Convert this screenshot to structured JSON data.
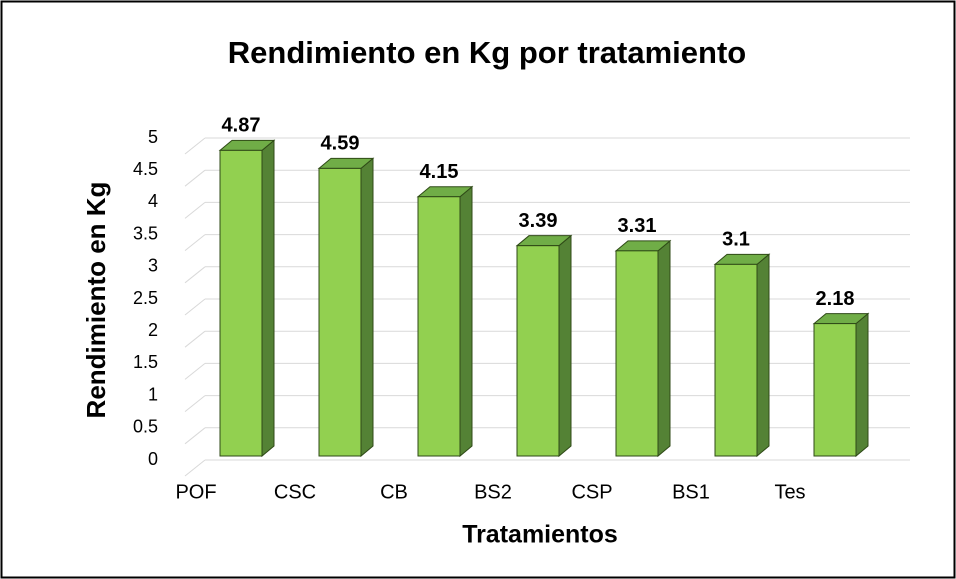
{
  "chart_data": {
    "type": "bar",
    "title": "Rendimiento en Kg por tratamiento",
    "x_label": "Tratamientos",
    "y_label": "Rendimiento en Kg",
    "categories": [
      "POF",
      "CSC",
      "CB",
      "BS2",
      "CSP",
      "BS1",
      "Tes"
    ],
    "values": [
      4.87,
      4.59,
      4.15,
      3.39,
      3.31,
      3.1,
      2.18
    ],
    "color": "#92d050",
    "ylim": [
      0,
      5
    ],
    "yticks": [
      0,
      0.5,
      1,
      1.5,
      2,
      2.5,
      3,
      3.5,
      4,
      4.5,
      5
    ],
    "grid": true
  }
}
